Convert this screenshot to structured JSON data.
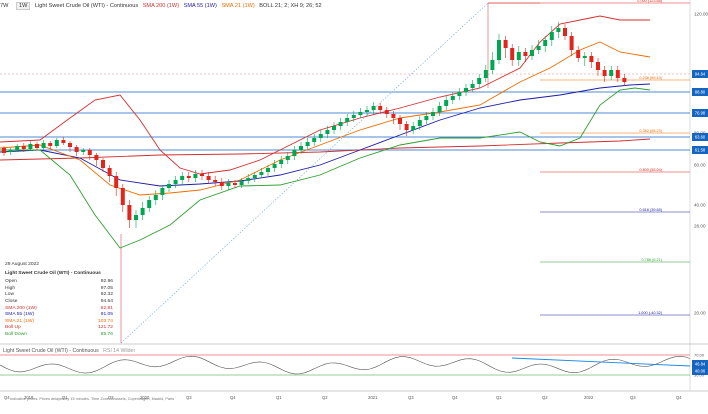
{
  "header": {
    "symbol_code": "7W",
    "title": "Light Sweet Crude Oil (WTI) - Continuous",
    "timeframe": "1W",
    "sma200": "SMA 200 (1W)",
    "sma55": "SMA 55 (1W)",
    "sma21": "SMA 21 (1W)",
    "boll": "BOLL 21; 2; XH 9; 26; 52"
  },
  "info_panel": {
    "date": "29 August 2022",
    "title": "Light Sweet Crude Oil (WTI) - Continuous",
    "rows": [
      {
        "label": "Open",
        "value": "92.96"
      },
      {
        "label": "High",
        "value": "97.05"
      },
      {
        "label": "Low",
        "value": "92.32"
      },
      {
        "label": "Close",
        "value": "94.64"
      },
      {
        "label": "SMA 200 (1W)",
        "value": "62.81"
      },
      {
        "label": "SMA 55 (1W)",
        "value": "91.05"
      },
      {
        "label": "SMA 21 (1W)",
        "value": "103.74"
      },
      {
        "label": "Boll Up",
        "value": "121.72"
      },
      {
        "label": "Boll Down",
        "value": "85.76"
      }
    ]
  },
  "oscillator": {
    "title": "Light Sweet Crude Oil (WTI) - Continuous",
    "indicator": "RSI 14 Wilder"
  },
  "disclaimer": "Indicative prices. Prices delayed by 15 minutes. Time Zone: Brussels, Copenhagen, Madrid, Paris",
  "colors": {
    "up": "#00a651",
    "down": "#e1251b",
    "sma200": "#d32f2f",
    "sma55": "#1a1aa6",
    "sma21": "#ef6c00",
    "boll_up": "#d32f2f",
    "boll_down": "#2e9e2e",
    "fib": "#bbbbbb",
    "hline": "#1565c0",
    "trend": "#6fa8dc"
  },
  "chart_data": {
    "type": "candlestick",
    "y_axis_tick_labels": [
      "120.00",
      "100.00",
      "80.00",
      "60.00",
      "40.00",
      "28.00",
      "20.00"
    ],
    "x_axis_tick_labels": [
      "Q4",
      "2019",
      "Q1",
      "Q2",
      "2020",
      "Q3",
      "Q4",
      "Q1",
      "Q2",
      "2021",
      "Q3",
      "Q4",
      "Q1",
      "Q2",
      "2022",
      "Q3",
      "Q4"
    ],
    "fib_levels": [
      {
        "label": "0.000 (123.68)",
        "color": "#e1251b"
      },
      {
        "label": "0.236 (89.14)",
        "color": "#ef6c00"
      },
      {
        "label": "0.382 (68.23)",
        "color": "#ef6c00"
      },
      {
        "label": "0.500 (55.04)",
        "color": "#e1251b"
      },
      {
        "label": "0.618 (39.65)",
        "color": "#1a1aa6"
      },
      {
        "label": "0.786 (6.21)",
        "color": "#2e9e2e"
      },
      {
        "label": "1.000 (-40.32)",
        "color": "#1a1aa6"
      }
    ],
    "right_price_boxes": [
      {
        "value": "94.64",
        "color": "#1565c0"
      },
      {
        "value": "88.80",
        "color": "#1565c0"
      },
      {
        "value": "76.98",
        "color": "#1565c0"
      },
      {
        "value": "63.60",
        "color": "#1565c0"
      },
      {
        "value": "61.58",
        "color": "#1565c0"
      }
    ],
    "rsi_ticks": [
      "70.00",
      "50.00",
      "30.00"
    ],
    "rsi_boxes": [
      "46.84",
      "40.06"
    ]
  }
}
